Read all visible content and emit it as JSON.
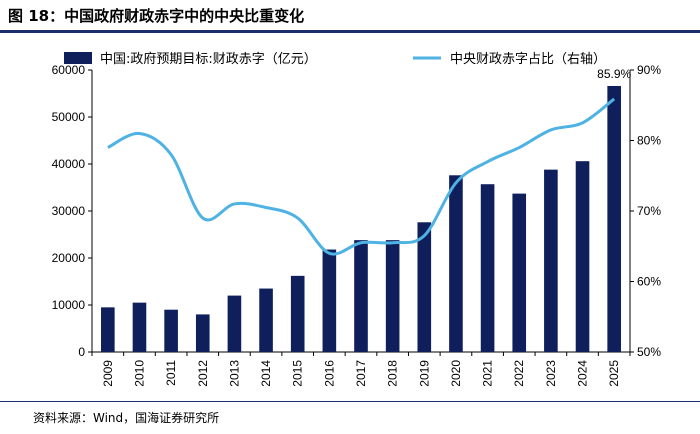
{
  "figure_title": "图 18：中国政府财政赤字中的中央比重变化",
  "source": "资料来源：Wind，国海证券研究所",
  "colors": {
    "bar": "#0f1f5c",
    "line": "#4eb2e3",
    "axis": "#000000",
    "rule": "#1b2d6b"
  },
  "chart_data": {
    "type": "bar+line",
    "title": "中国政府财政赤字中的中央比重变化",
    "categories": [
      "2009",
      "2010",
      "2011",
      "2012",
      "2013",
      "2014",
      "2015",
      "2016",
      "2017",
      "2018",
      "2019",
      "2020",
      "2021",
      "2022",
      "2023",
      "2024",
      "2025"
    ],
    "series": [
      {
        "name": "中国:政府预期目标:财政赤字（亿元）",
        "type": "bar",
        "axis": "left",
        "values": [
          9500,
          10500,
          9000,
          8000,
          12000,
          13500,
          16200,
          21800,
          23800,
          23800,
          27600,
          37600,
          35700,
          33700,
          38800,
          40600,
          56600
        ]
      },
      {
        "name": "中央财政赤字占比（右轴）",
        "type": "line",
        "axis": "right",
        "values": [
          79.0,
          81.0,
          78.0,
          69.0,
          71.0,
          70.5,
          69.0,
          64.0,
          65.5,
          65.5,
          66.5,
          74.0,
          77.0,
          79.0,
          81.5,
          82.5,
          85.9
        ]
      }
    ],
    "ylim_left": [
      0,
      60000
    ],
    "yticks_left": [
      "0",
      "10000",
      "20000",
      "30000",
      "40000",
      "50000",
      "60000"
    ],
    "ylim_right": [
      50,
      90
    ],
    "yticks_right": [
      "50%",
      "60%",
      "70%",
      "80%",
      "90%"
    ],
    "annotation": "85.9%",
    "legend": [
      "中国:政府预期目标:财政赤字（亿元）",
      "中央财政赤字占比（右轴）"
    ]
  }
}
